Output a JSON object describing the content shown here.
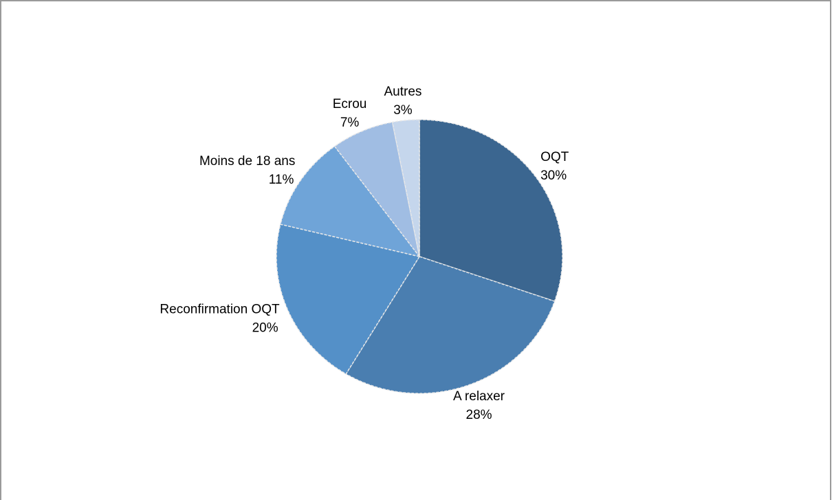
{
  "chart_data": {
    "type": "pie",
    "categories": [
      "OQT",
      "A relaxer",
      "Reconfirmation OQT",
      "Moins de 18 ans",
      "Ecrou",
      "Autres"
    ],
    "values": [
      30,
      28,
      20,
      11,
      7,
      3
    ],
    "value_labels": [
      "30%",
      "28%",
      "20%",
      "11%",
      "7%",
      "3%"
    ],
    "colors": [
      "#3b6690",
      "#4a7eb0",
      "#5490c8",
      "#6fa4d8",
      "#a0bde3",
      "#c5d6ec"
    ]
  }
}
